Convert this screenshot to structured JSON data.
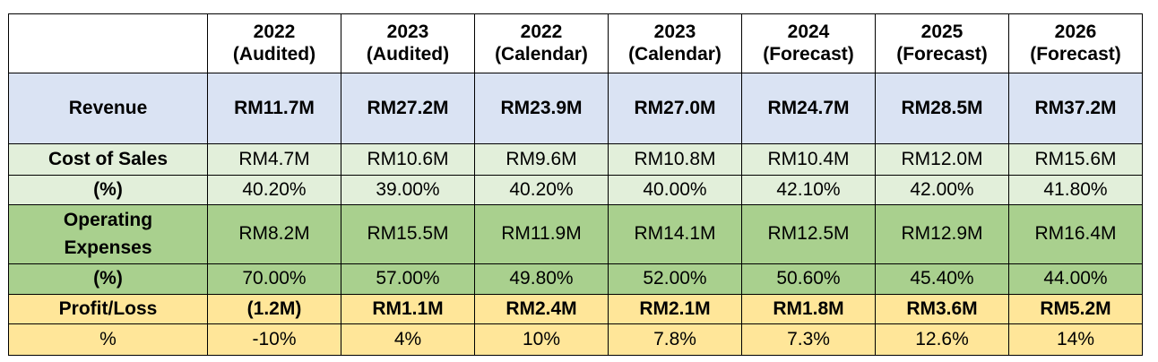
{
  "header": {
    "corner": "",
    "columns": [
      {
        "year": "2022",
        "basis": "(Audited)"
      },
      {
        "year": "2023",
        "basis": "(Audited)"
      },
      {
        "year": "2022",
        "basis": "(Calendar)"
      },
      {
        "year": "2023",
        "basis": "(Calendar)"
      },
      {
        "year": "2024",
        "basis": "(Forecast)"
      },
      {
        "year": "2025",
        "basis": "(Forecast)"
      },
      {
        "year": "2026",
        "basis": "(Forecast)"
      }
    ]
  },
  "rows": {
    "revenue": {
      "label": "Revenue",
      "values": [
        "RM11.7M",
        "RM27.2M",
        "RM23.9M",
        "RM27.0M",
        "RM24.7M",
        "RM28.5M",
        "RM37.2M"
      ]
    },
    "cost_of_sales": {
      "label": "Cost of Sales",
      "values": [
        "RM4.7M",
        "RM10.6M",
        "RM9.6M",
        "RM10.8M",
        "RM10.4M",
        "RM12.0M",
        "RM15.6M"
      ]
    },
    "cost_of_sales_pct": {
      "label": "(%)",
      "values": [
        "40.20%",
        "39.00%",
        "40.20%",
        "40.00%",
        "42.10%",
        "42.00%",
        "41.80%"
      ]
    },
    "operating_expenses": {
      "label_line1": "Operating",
      "label_line2": "Expenses",
      "values": [
        "RM8.2M",
        "RM15.5M",
        "RM11.9M",
        "RM14.1M",
        "RM12.5M",
        "RM12.9M",
        "RM16.4M"
      ]
    },
    "operating_expenses_pct": {
      "label": "(%)",
      "values": [
        "70.00%",
        "57.00%",
        "49.80%",
        "52.00%",
        "50.60%",
        "45.40%",
        "44.00%"
      ]
    },
    "profit_loss": {
      "label": "Profit/Loss",
      "values": [
        "(1.2M)",
        "RM1.1M",
        "RM2.4M",
        "RM2.1M",
        "RM1.8M",
        "RM3.6M",
        "RM5.2M"
      ]
    },
    "profit_loss_pct": {
      "label": "%",
      "values": [
        "-10%",
        "4%",
        "10%",
        "7.8%",
        "7.3%",
        "12.6%",
        "14%"
      ]
    }
  },
  "colors": {
    "revenue_fill": "#dae3f3",
    "cost_of_sales_fill": "#e2efda",
    "operating_expenses_fill": "#a9d08e",
    "profit_loss_fill": "#ffe699",
    "border": "#000000"
  }
}
